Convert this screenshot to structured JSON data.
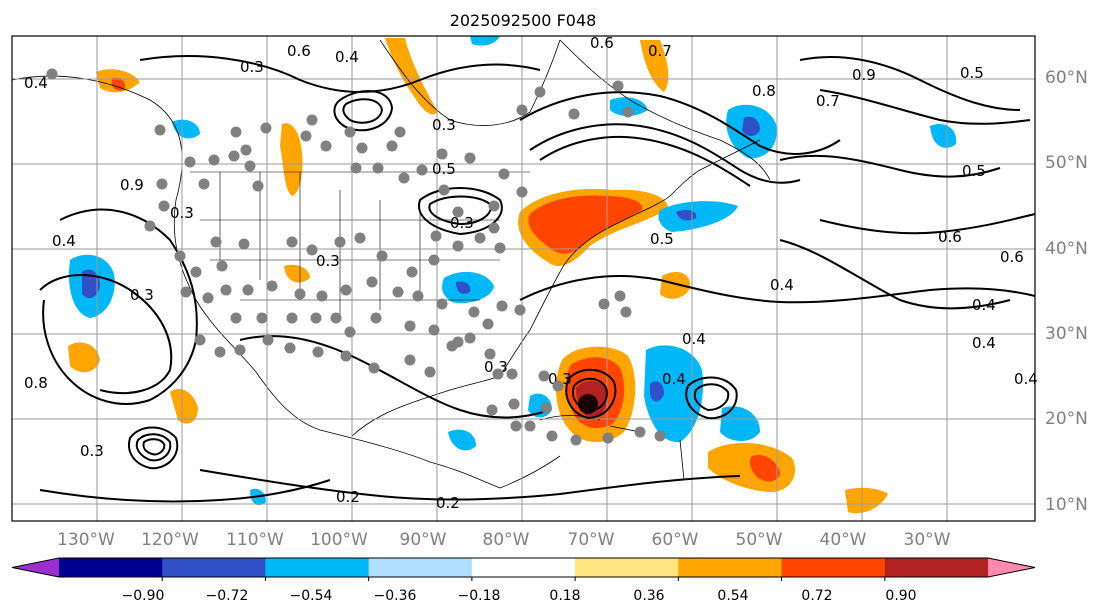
{
  "title": "2025092500 F048",
  "lon_labels": [
    "130°W",
    "120°W",
    "110°W",
    "100°W",
    "90°W",
    "80°W",
    "70°W",
    "60°W",
    "50°W",
    "40°W",
    "30°W"
  ],
  "lat_labels": [
    "60°N",
    "50°N",
    "40°N",
    "30°N",
    "20°N",
    "10°N"
  ],
  "colorbar": {
    "ticks": [
      "−0.90",
      "−0.72",
      "−0.54",
      "−0.36",
      "−0.18",
      "0.18",
      "0.36",
      "0.54",
      "0.72",
      "0.90"
    ],
    "colors": [
      "#9a30d0",
      "#000090",
      "#3050c8",
      "#00b8f8",
      "#b0e0ff",
      "#ffffff",
      "#ffe680",
      "#ffa500",
      "#ff4500",
      "#b22222",
      "#ff88b0"
    ]
  },
  "contour_labels": [
    "0.6",
    "0.4",
    "0.3",
    "0.4",
    "0.7",
    "0.3",
    "0.5",
    "0.5",
    "0.7",
    "0.9",
    "0.8",
    "0.3",
    "0.4",
    "0.9",
    "0.3",
    "0.3",
    "0.5",
    "0.6",
    "0.4",
    "0.4",
    "0.5",
    "0.6",
    "0.4",
    "0.4",
    "0.8",
    "0.3",
    "0.3",
    "0.3",
    "0.4",
    "0.6",
    "0.3",
    "0.2",
    "0.2",
    "0.4"
  ],
  "colors": {
    "grid": "#9a9a9a",
    "axis_label": "#808080",
    "station": "#808080",
    "contour": "#000000",
    "orange": "#ffa500",
    "red": "#ff4500",
    "darkred": "#b22222",
    "cyan": "#00b8f8",
    "lightblue": "#b0e0ff",
    "blue": "#3050c8",
    "navy": "#000090"
  }
}
